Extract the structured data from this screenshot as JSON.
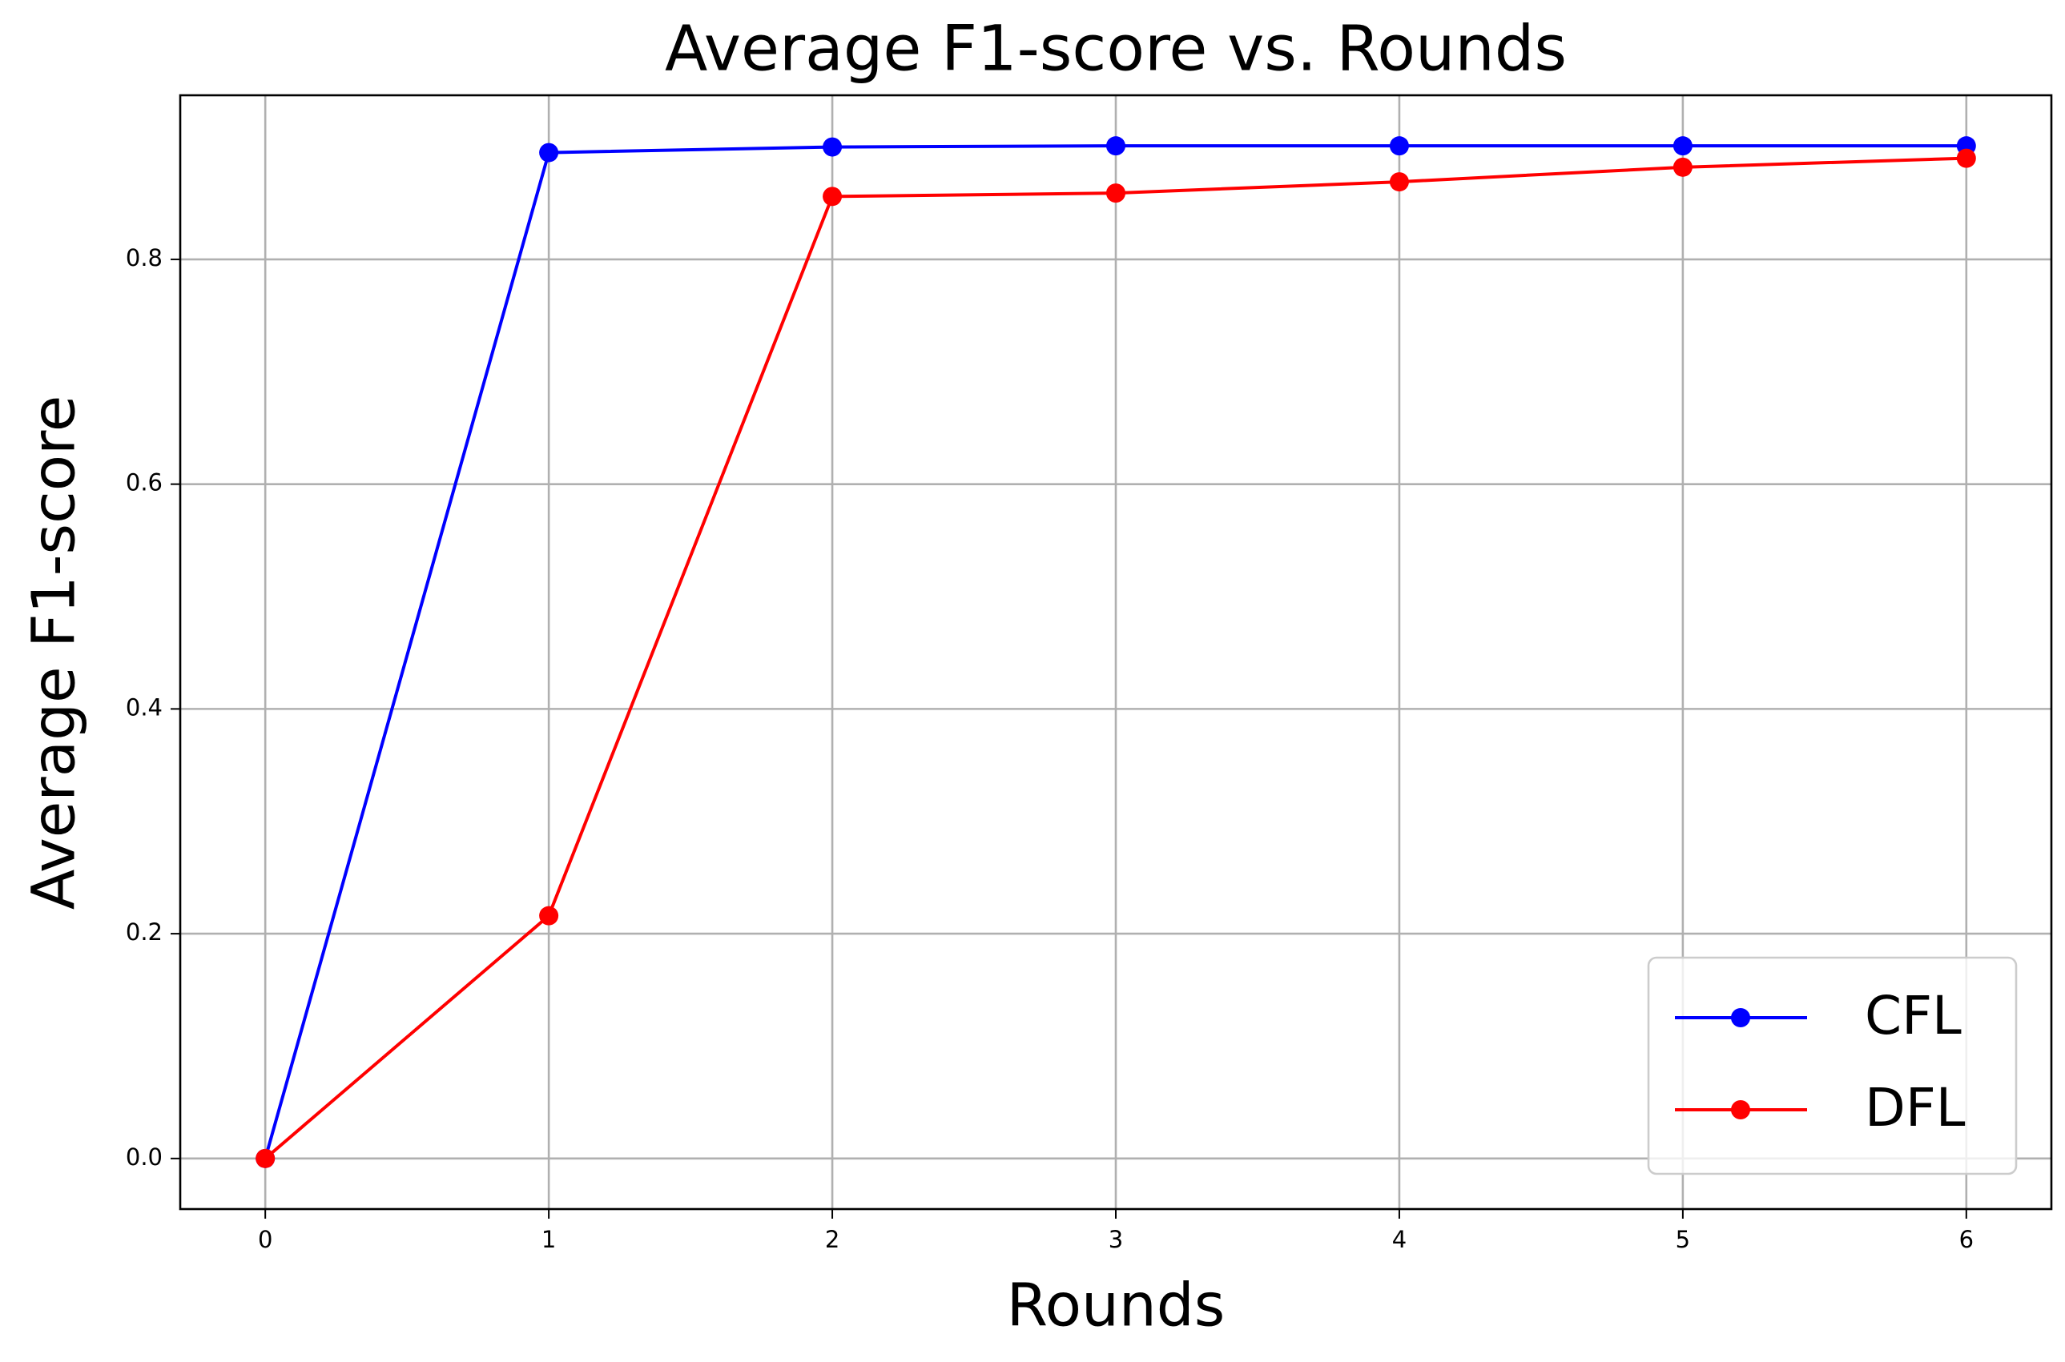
{
  "chart_data": {
    "type": "line",
    "title": "Average F1-score vs. Rounds",
    "x_label": "Rounds",
    "y_label": "Average F1-score",
    "x": [
      0,
      1,
      2,
      3,
      4,
      5,
      6
    ],
    "series": [
      {
        "name": "CFL",
        "color": "#0000ff",
        "values": [
          0,
          0.895,
          0.9,
          0.901,
          0.901,
          0.901,
          0.901
        ]
      },
      {
        "name": "DFL",
        "color": "#ff0000",
        "values": [
          0,
          0.216,
          0.856,
          0.859,
          0.869,
          0.882,
          0.89
        ]
      }
    ],
    "xlim": [
      -0.3,
      6.3
    ],
    "xticks": [
      0,
      1,
      2,
      3,
      4,
      5,
      6
    ],
    "ylim": [
      -0.045,
      0.946
    ],
    "yticks": [
      {
        "value": 0,
        "label": "0.0"
      },
      0.2,
      0.4,
      0.6,
      0.8
    ],
    "grid": true,
    "legend_loc": "lower right"
  }
}
